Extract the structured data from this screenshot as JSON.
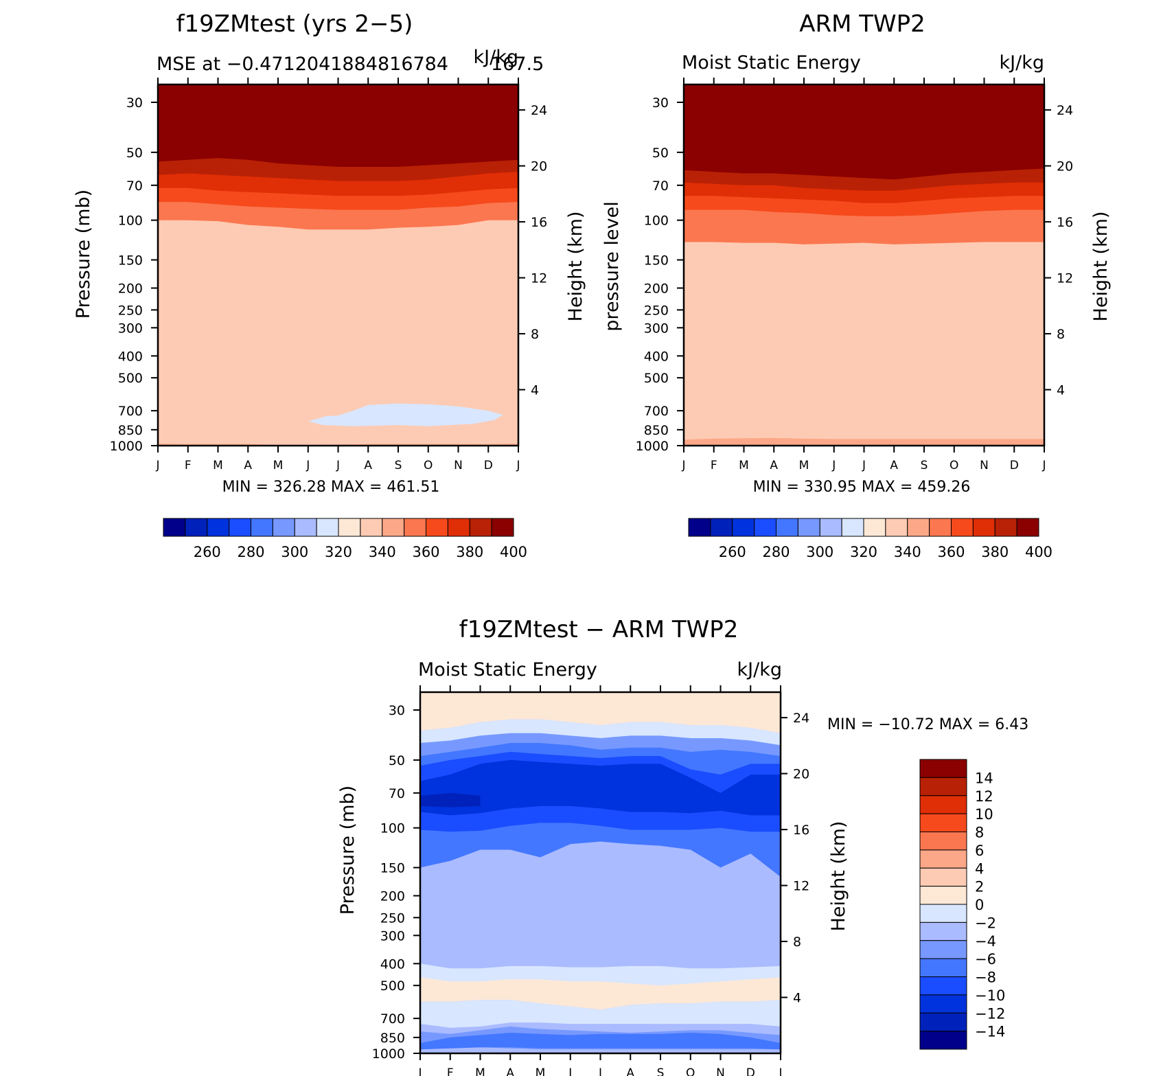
{
  "chart_data": [
    {
      "type": "heatmap",
      "title": "f19ZMtest (yrs 2−5)",
      "subtitle_left": "MSE at −0.4712041884816784",
      "subtitle_mid": "167.5",
      "subtitle_right": "kJ/kg",
      "ylabel": "Pressure (mb)",
      "y2label": "Height (km)",
      "x": [
        "J",
        "F",
        "M",
        "A",
        "M",
        "J",
        "J",
        "A",
        "S",
        "O",
        "N",
        "D",
        "J"
      ],
      "pressure_ticks": [
        30,
        50,
        70,
        100,
        150,
        200,
        250,
        300,
        400,
        500,
        700,
        850,
        1000
      ],
      "height_ticks": [
        24,
        20,
        16,
        12,
        8,
        4
      ],
      "min_max_label": "MIN = 326.28 MAX = 461.51",
      "colorbar_labels": [
        "260",
        "280",
        "300",
        "320",
        "340",
        "360",
        "380",
        "400"
      ],
      "contour_levels": [
        250,
        260,
        270,
        280,
        290,
        300,
        310,
        320,
        330,
        340,
        350,
        360,
        370,
        380,
        390,
        400
      ],
      "boundaries": [
        {
          "above": 350,
          "pressure": [
            980,
            985,
            985,
            985,
            990,
            990,
            988,
            985,
            985,
            985,
            985,
            983,
            980
          ]
        },
        {
          "above": 360,
          "pressure": [
            100,
            100,
            101,
            105,
            107,
            110,
            110,
            110,
            108,
            107,
            105,
            100,
            100
          ]
        },
        {
          "above": 370,
          "pressure": [
            83,
            83,
            85,
            87,
            88,
            89,
            90,
            90,
            90,
            88,
            87,
            84,
            83
          ]
        },
        {
          "above": 380,
          "pressure": [
            72,
            72,
            74,
            75,
            76,
            77,
            78,
            78,
            78,
            77,
            75,
            73,
            72
          ]
        },
        {
          "above": 390,
          "pressure": [
            63,
            62,
            63,
            64,
            65,
            66,
            67,
            67,
            67,
            66,
            64,
            62,
            61
          ]
        },
        {
          "above": 400,
          "pressure": [
            55,
            54,
            53,
            54,
            56,
            57,
            58,
            58,
            58,
            57,
            56,
            55,
            54
          ]
        }
      ],
      "low_region": {
        "value": 330,
        "x": [
          5,
          5.6,
          6,
          6.5,
          7,
          8,
          9,
          10,
          11,
          11.5,
          11.2,
          10.5,
          9,
          8,
          6.5,
          5.5,
          5
        ],
        "pressure": [
          780,
          740,
          735,
          700,
          660,
          650,
          655,
          670,
          700,
          730,
          770,
          800,
          820,
          810,
          820,
          810,
          780
        ]
      },
      "ylim": [
        1000,
        25
      ]
    },
    {
      "type": "heatmap",
      "title": "ARM TWP2",
      "subtitle_left": "Moist Static Energy",
      "subtitle_right": "kJ/kg",
      "ylabel": "pressure level",
      "y2label": "Height (km)",
      "x": [
        "J",
        "F",
        "M",
        "A",
        "M",
        "J",
        "J",
        "A",
        "S",
        "O",
        "N",
        "D",
        "J"
      ],
      "pressure_ticks": [
        30,
        50,
        70,
        100,
        150,
        200,
        250,
        300,
        400,
        500,
        700,
        850,
        1000
      ],
      "height_ticks": [
        24,
        20,
        16,
        12,
        8,
        4
      ],
      "min_max_label": "MIN = 330.95 MAX = 459.26",
      "colorbar_labels": [
        "260",
        "280",
        "300",
        "320",
        "340",
        "360",
        "380",
        "400"
      ],
      "contour_levels": [
        250,
        260,
        270,
        280,
        290,
        300,
        310,
        320,
        330,
        340,
        350,
        360,
        370,
        380,
        390,
        400
      ],
      "boundaries": [
        {
          "above": 350,
          "pressure": [
            940,
            930,
            928,
            925,
            930,
            935,
            935,
            935,
            935,
            935,
            935,
            935,
            935
          ]
        },
        {
          "above": 360,
          "pressure": [
            125,
            125,
            126,
            126,
            128,
            127,
            126,
            128,
            127,
            126,
            125,
            125,
            125
          ]
        },
        {
          "above": 370,
          "pressure": [
            90,
            90,
            90,
            92,
            93,
            95,
            96,
            96,
            95,
            93,
            91,
            90,
            90
          ]
        },
        {
          "above": 380,
          "pressure": [
            78,
            78,
            79,
            80,
            81,
            82,
            84,
            84,
            82,
            80,
            79,
            78,
            78
          ]
        },
        {
          "above": 390,
          "pressure": [
            68,
            69,
            70,
            70,
            72,
            73,
            74,
            74,
            72,
            70,
            69,
            68,
            68
          ]
        },
        {
          "above": 400,
          "pressure": [
            60,
            61,
            62,
            62,
            63,
            64,
            65,
            66,
            64,
            62,
            61,
            60,
            59
          ]
        }
      ],
      "ylim": [
        1000,
        25
      ]
    },
    {
      "type": "heatmap",
      "title": "f19ZMtest − ARM TWP2",
      "subtitle_left": "Moist Static Energy",
      "subtitle_right": "kJ/kg",
      "ylabel": "Pressure (mb)",
      "y2label": "Height (km)",
      "x": [
        "J",
        "F",
        "M",
        "A",
        "M",
        "J",
        "J",
        "A",
        "S",
        "O",
        "N",
        "D",
        "J"
      ],
      "pressure_ticks": [
        30,
        50,
        70,
        100,
        150,
        200,
        250,
        300,
        400,
        500,
        700,
        850,
        1000
      ],
      "height_ticks": [
        24,
        20,
        16,
        12,
        8,
        4
      ],
      "min_max_label": "MIN = −10.72 MAX =    6.43",
      "colorbar_labels": [
        "14",
        "12",
        "10",
        "8",
        "6",
        "4",
        "2",
        "0",
        "−2",
        "−4",
        "−6",
        "−8",
        "−10",
        "−12",
        "−14"
      ],
      "contour_levels": [
        -16,
        -14,
        -12,
        -10,
        -8,
        -6,
        -4,
        -2,
        0,
        2,
        4,
        6,
        8,
        10,
        12,
        14,
        16
      ],
      "background_value": -3,
      "layers": [
        {
          "value": 5,
          "top": [
            25,
            25,
            25,
            25,
            25,
            25,
            25,
            25,
            25,
            25,
            25,
            25,
            25
          ],
          "bottom": [
            29,
            28,
            26,
            25,
            25,
            25,
            26,
            25,
            25,
            26,
            26,
            29,
            31
          ]
        },
        {
          "value": 3,
          "top": [
            25,
            25,
            25,
            25,
            25,
            25,
            25,
            25,
            25,
            25,
            25,
            25,
            25
          ],
          "bottom": [
            33,
            32,
            30,
            29,
            29,
            30,
            31,
            30,
            30,
            31,
            31,
            32,
            34
          ]
        },
        {
          "value": 1,
          "top": [
            25,
            25,
            25,
            25,
            25,
            25,
            25,
            25,
            25,
            25,
            25,
            25,
            25
          ],
          "bottom": [
            37,
            36,
            34,
            33,
            33,
            34,
            35,
            34,
            34,
            35,
            35,
            36,
            38
          ]
        },
        {
          "value": -1,
          "top": [
            37,
            36,
            34,
            33,
            33,
            34,
            35,
            34,
            34,
            35,
            35,
            36,
            38
          ],
          "bottom": [
            42,
            41,
            39,
            38,
            38,
            39,
            40,
            39,
            39,
            40,
            40,
            41,
            43
          ]
        },
        {
          "value": -5,
          "top": [
            42,
            41,
            39,
            38,
            38,
            39,
            40,
            39,
            39,
            40,
            40,
            41,
            43
          ],
          "bottom": [
            48,
            46,
            44,
            42,
            42,
            43,
            45,
            44,
            44,
            46,
            45,
            46,
            48
          ]
        },
        {
          "value": -7,
          "top": [
            48,
            46,
            44,
            42,
            42,
            43,
            45,
            44,
            44,
            46,
            45,
            46,
            48
          ],
          "bottom": [
            150,
            140,
            125,
            125,
            135,
            118,
            115,
            118,
            120,
            125,
            150,
            130,
            165
          ]
        },
        {
          "value": -9,
          "top": [
            53,
            50,
            48,
            46,
            47,
            48,
            49,
            48,
            48,
            55,
            58,
            52,
            52
          ],
          "bottom": [
            102,
            104,
            103,
            98,
            95,
            95,
            98,
            102,
            102,
            102,
            100,
            104,
            104
          ]
        },
        {
          "value": -11,
          "top": [
            62,
            58,
            52,
            50,
            51,
            52,
            53,
            52,
            52,
            60,
            70,
            58,
            58
          ],
          "bottom": [
            85,
            88,
            86,
            82,
            80,
            80,
            82,
            85,
            85,
            86,
            84,
            88,
            88
          ]
        },
        {
          "value": -13,
          "top": [
            72,
            70,
            72,
            0,
            0,
            0,
            0,
            0,
            0,
            0,
            0,
            0,
            0
          ],
          "bottom": [
            80,
            81,
            80,
            0,
            0,
            0,
            0,
            0,
            0,
            0,
            0,
            0,
            0
          ]
        },
        {
          "value": -1,
          "top": [
            400,
            420,
            420,
            410,
            410,
            415,
            415,
            410,
            410,
            420,
            420,
            415,
            410
          ],
          "bottom": [
            530,
            520,
            520,
            540,
            540,
            540,
            540,
            545,
            550,
            545,
            540,
            520,
            520
          ]
        },
        {
          "value": 1,
          "top": [
            460,
            480,
            480,
            470,
            470,
            480,
            480,
            490,
            500,
            490,
            480,
            470,
            460
          ],
          "bottom": [
            590,
            590,
            580,
            580,
            600,
            620,
            640,
            610,
            600,
            600,
            590,
            590,
            580
          ]
        },
        {
          "value": -1,
          "top": [
            590,
            590,
            580,
            580,
            600,
            620,
            640,
            610,
            600,
            600,
            590,
            590,
            580
          ],
          "bottom": [
            740,
            770,
            760,
            730,
            730,
            740,
            740,
            740,
            740,
            740,
            740,
            740,
            760
          ]
        },
        {
          "value": -5,
          "top": [
            800,
            820,
            790,
            760,
            780,
            790,
            800,
            810,
            800,
            790,
            790,
            810,
            830
          ],
          "bottom": [
            960,
            950,
            940,
            950,
            960,
            960,
            960,
            960,
            960,
            960,
            960,
            960,
            960
          ]
        },
        {
          "value": -7,
          "top": [
            900,
            850,
            830,
            810,
            820,
            830,
            820,
            820,
            820,
            810,
            820,
            850,
            900
          ],
          "bottom": [
            960,
            950,
            940,
            940,
            950,
            950,
            950,
            950,
            950,
            950,
            950,
            950,
            960
          ]
        }
      ],
      "ylim": [
        1000,
        25
      ]
    }
  ],
  "colorbars": {
    "temperature": [
      "#00008b",
      "#0022bb",
      "#0033dd",
      "#1a4dff",
      "#4477ff",
      "#7799ff",
      "#aabbff",
      "#d8e6ff",
      "#fde8d6",
      "#fdcbb3",
      "#fca888",
      "#fb7750",
      "#f64a1c",
      "#e02e06",
      "#b82105",
      "#8b0000"
    ],
    "difference": [
      "#8b0000",
      "#b82105",
      "#e02e06",
      "#f64a1c",
      "#fb7750",
      "#fca888",
      "#fdcbb3",
      "#fde8d6",
      "#d8e6ff",
      "#aabbff",
      "#7799ff",
      "#4477ff",
      "#1a4dff",
      "#0033dd",
      "#0022bb",
      "#00008b"
    ]
  }
}
